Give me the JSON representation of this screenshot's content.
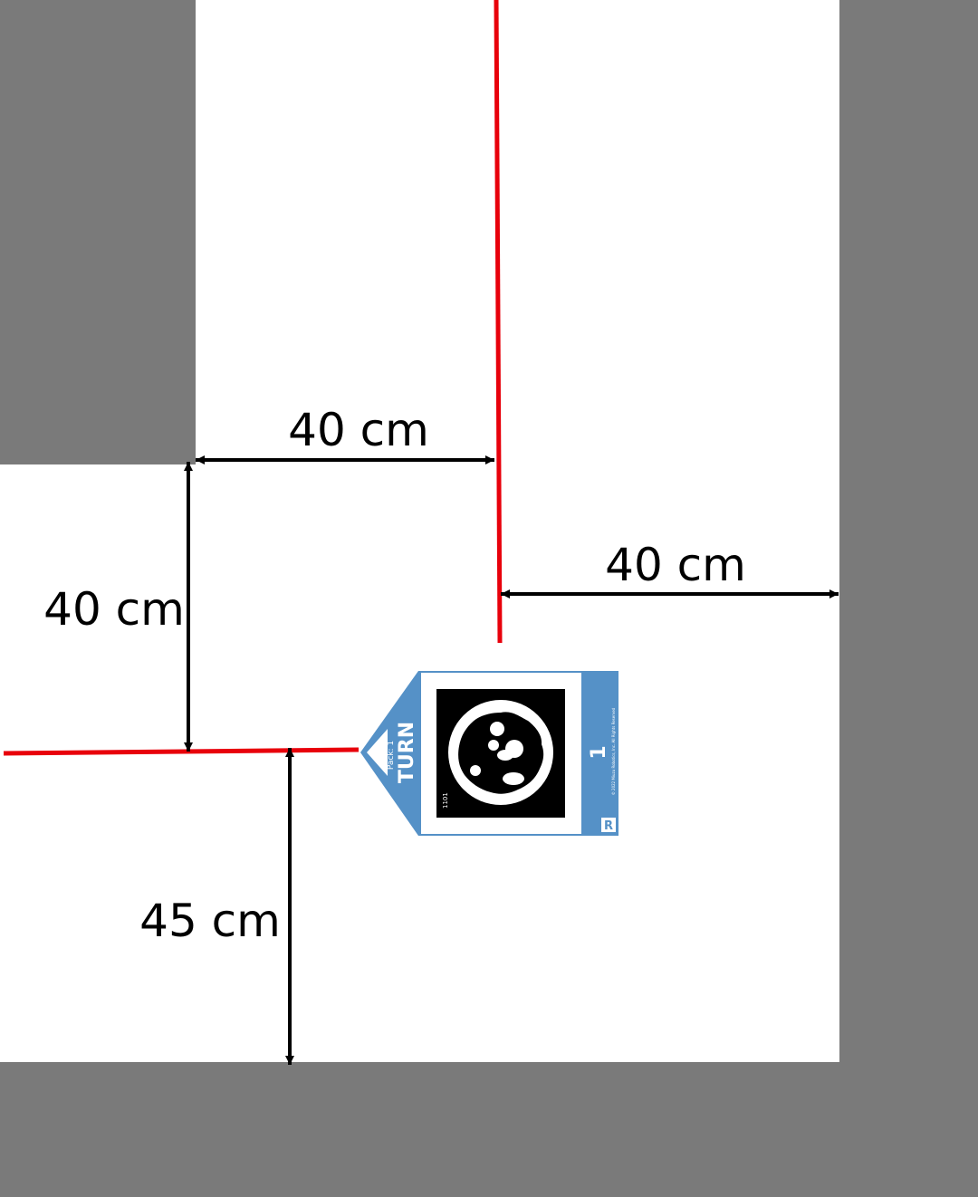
{
  "colors": {
    "background": "#7a7a7a",
    "floor": "#ffffff",
    "tape": "#e8000b",
    "arrow": "#000000",
    "card_blue": "#5591c7"
  },
  "dimensions": {
    "top_width": "40 cm",
    "right_width": "40 cm",
    "left_height": "40 cm",
    "bottom_height": "45 cm"
  },
  "card": {
    "title": "TURN",
    "subtitle": "Pack: 1",
    "number": "1",
    "code": "1101",
    "fine_print": "© 2022 Miuzu Robotics, Inc. All Rights Reserved",
    "logo": "R"
  }
}
